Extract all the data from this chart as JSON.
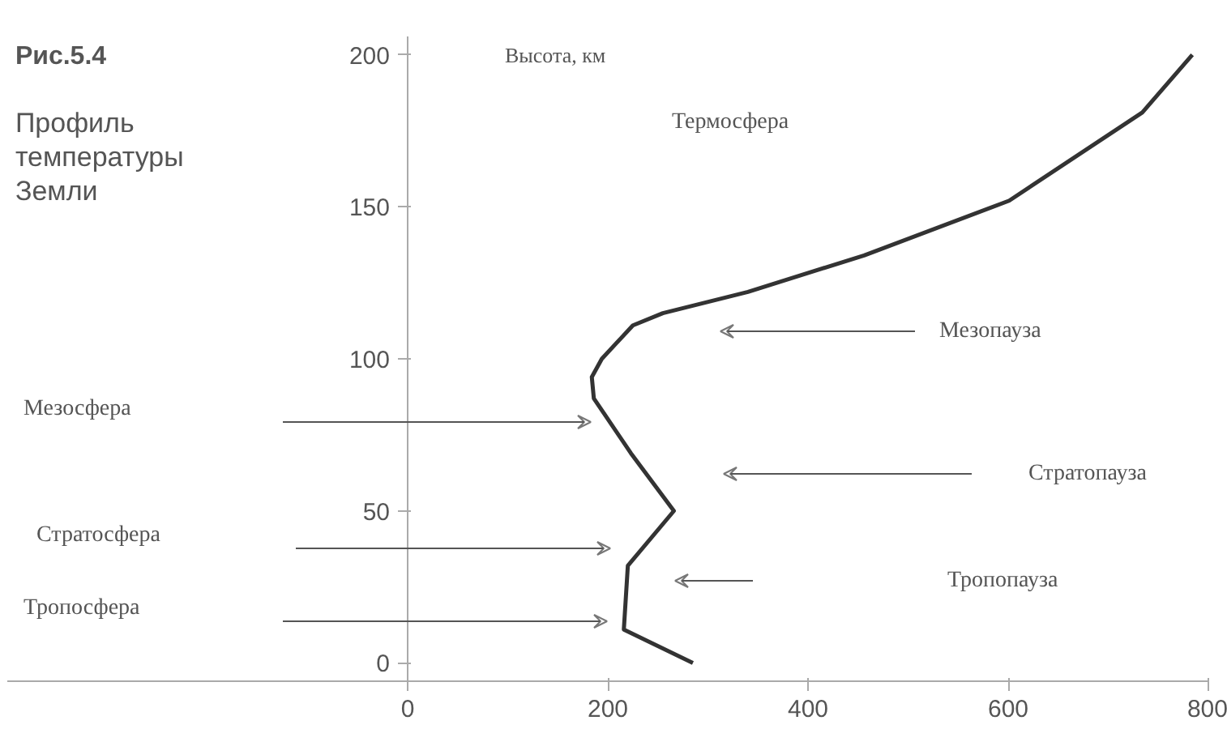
{
  "chart_data": {
    "type": "line",
    "title": "Рис.5.4",
    "subtitle": "Профиль\nтемпературы\nЗемли",
    "ylabel": "Высота, км",
    "xlim": [
      -400,
      800
    ],
    "ylim": [
      -6,
      206
    ],
    "xticks": [
      0,
      200,
      400,
      600,
      800
    ],
    "yticks": [
      0,
      50,
      100,
      150,
      200
    ],
    "grid": false,
    "marker": "none",
    "line_style": "solid",
    "series": [
      {
        "color": "#333333",
        "x": [
          285,
          216,
          220,
          266,
          223,
          186,
          184,
          194,
          225,
          255,
          340,
          456,
          601,
          734,
          784
        ],
        "values": [
          0,
          11,
          32,
          50,
          69,
          87,
          94,
          100,
          111,
          115,
          122,
          134,
          152,
          181,
          200
        ]
      }
    ],
    "annotations": [
      "Термосфера",
      "Мезосфера",
      "Стратосфера",
      "Тропосфера",
      "Мезопауза",
      "Стратопауза",
      "Тропопауза"
    ]
  }
}
